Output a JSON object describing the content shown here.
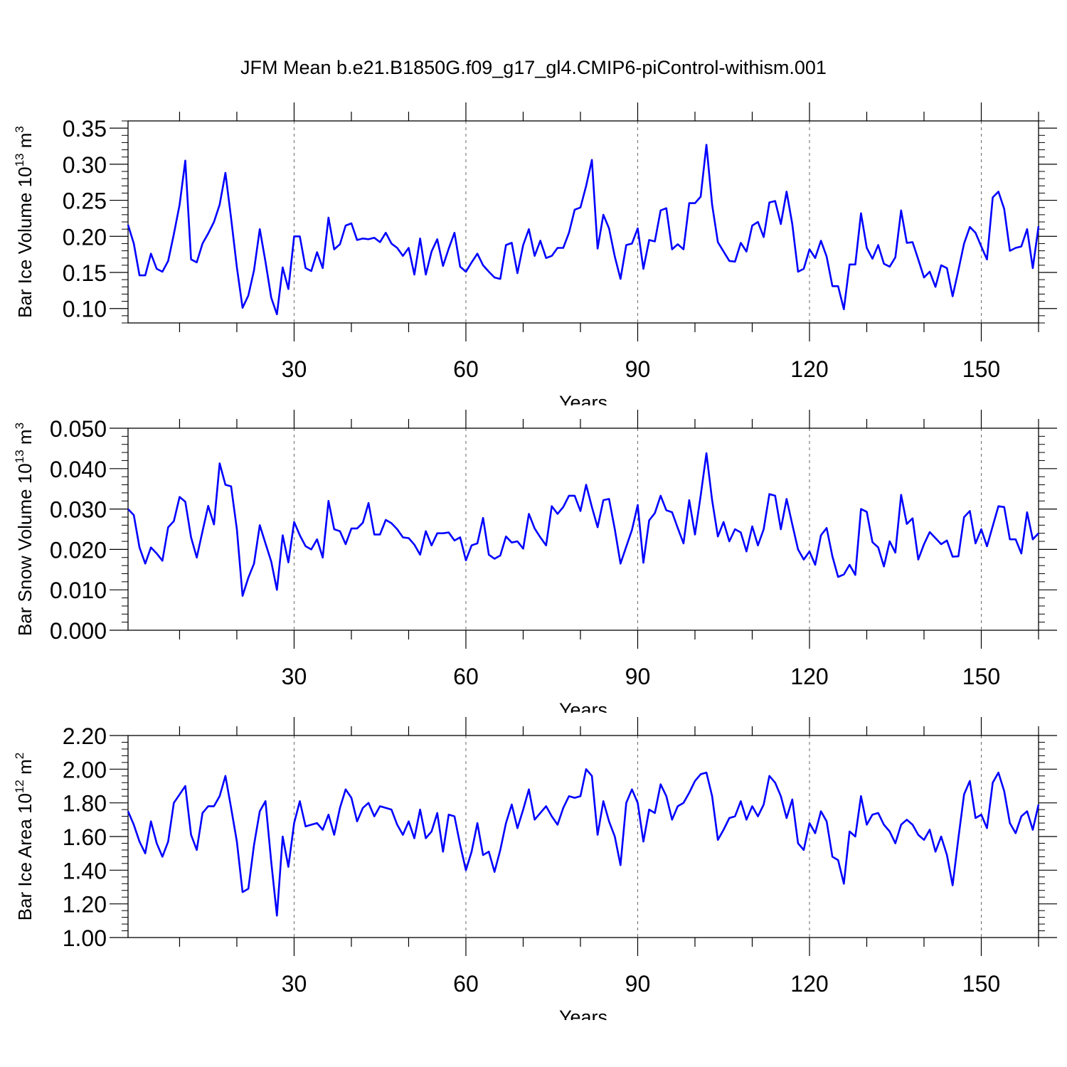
{
  "title": "JFM Mean b.e21.B1850G.f09_g17_gl4.CMIP6-piControl-withism.001",
  "colors": {
    "line": "#0000ff",
    "axis": "#000000",
    "grid": "#666666"
  },
  "chart_data": [
    {
      "type": "line",
      "xlabel": "Years",
      "ylabel_main": "Bar Ice Volume 10",
      "ylabel_exp": "13",
      "ylabel_unit": " m",
      "ylabel_unit_exp": "3",
      "xlim": [
        1,
        160
      ],
      "ylim": [
        0.08,
        0.36
      ],
      "yticks": [
        0.1,
        0.15,
        0.2,
        0.25,
        0.3,
        0.35
      ],
      "ytick_labels": [
        "0.10",
        "0.15",
        "0.20",
        "0.25",
        "0.30",
        "0.35"
      ],
      "xticks": [
        30,
        60,
        90,
        120,
        150
      ],
      "xtick_labels": [
        "30",
        "60",
        "90",
        "120",
        "150"
      ],
      "grid_x": [
        30,
        60,
        90,
        120,
        150
      ],
      "series": [
        {
          "name": "Bar Ice Volume",
          "values": [
            0.216,
            0.19,
            0.146,
            0.146,
            0.176,
            0.155,
            0.151,
            0.166,
            0.203,
            0.244,
            0.305,
            0.168,
            0.164,
            0.19,
            0.204,
            0.22,
            0.244,
            0.288,
            0.225,
            0.157,
            0.101,
            0.118,
            0.153,
            0.21,
            0.165,
            0.115,
            0.092,
            0.157,
            0.127,
            0.2,
            0.2,
            0.156,
            0.152,
            0.178,
            0.156,
            0.226,
            0.182,
            0.189,
            0.215,
            0.218,
            0.195,
            0.197,
            0.196,
            0.198,
            0.192,
            0.205,
            0.19,
            0.184,
            0.173,
            0.184,
            0.147,
            0.197,
            0.147,
            0.179,
            0.196,
            0.159,
            0.183,
            0.205,
            0.158,
            0.151,
            0.164,
            0.176,
            0.16,
            0.151,
            0.143,
            0.141,
            0.188,
            0.191,
            0.149,
            0.188,
            0.21,
            0.173,
            0.194,
            0.17,
            0.173,
            0.184,
            0.184,
            0.205,
            0.237,
            0.24,
            0.27,
            0.306,
            0.183,
            0.23,
            0.211,
            0.172,
            0.141,
            0.188,
            0.19,
            0.211,
            0.155,
            0.195,
            0.193,
            0.236,
            0.239,
            0.182,
            0.189,
            0.182,
            0.246,
            0.246,
            0.255,
            0.327,
            0.244,
            0.192,
            0.179,
            0.166,
            0.165,
            0.191,
            0.179,
            0.215,
            0.22,
            0.199,
            0.247,
            0.249,
            0.217,
            0.262,
            0.217,
            0.151,
            0.155,
            0.182,
            0.17,
            0.194,
            0.172,
            0.131,
            0.131,
            0.099,
            0.161,
            0.161,
            0.232,
            0.184,
            0.169,
            0.188,
            0.162,
            0.158,
            0.171,
            0.236,
            0.191,
            0.192,
            0.168,
            0.143,
            0.151,
            0.13,
            0.16,
            0.156,
            0.117,
            0.153,
            0.19,
            0.213,
            0.205,
            0.186,
            0.168,
            0.254,
            0.262,
            0.238,
            0.18,
            0.184,
            0.186,
            0.21,
            0.156,
            0.214
          ]
        }
      ]
    },
    {
      "type": "line",
      "xlabel": "Years",
      "ylabel_main": "Bar Snow Volume 10",
      "ylabel_exp": "13",
      "ylabel_unit": " m",
      "ylabel_unit_exp": "3",
      "xlim": [
        1,
        160
      ],
      "ylim": [
        0.0,
        0.05
      ],
      "yticks": [
        0.0,
        0.01,
        0.02,
        0.03,
        0.04,
        0.05
      ],
      "ytick_labels": [
        "0.000",
        "0.010",
        "0.020",
        "0.030",
        "0.040",
        "0.050"
      ],
      "xticks": [
        30,
        60,
        90,
        120,
        150
      ],
      "xtick_labels": [
        "30",
        "60",
        "90",
        "120",
        "150"
      ],
      "grid_x": [
        30,
        60,
        90,
        120,
        150
      ],
      "series": [
        {
          "name": "Bar Snow Volume",
          "values": [
            0.03,
            0.0285,
            0.0205,
            0.0165,
            0.0205,
            0.019,
            0.0172,
            0.0255,
            0.027,
            0.033,
            0.0318,
            0.023,
            0.018,
            0.0245,
            0.0308,
            0.0262,
            0.0413,
            0.036,
            0.0356,
            0.025,
            0.0085,
            0.013,
            0.0165,
            0.026,
            0.0215,
            0.017,
            0.01,
            0.0235,
            0.0168,
            0.0268,
            0.0235,
            0.0208,
            0.02,
            0.0225,
            0.018,
            0.032,
            0.025,
            0.0245,
            0.0213,
            0.0252,
            0.0252,
            0.0266,
            0.0315,
            0.0237,
            0.0237,
            0.0273,
            0.0265,
            0.025,
            0.023,
            0.0228,
            0.0212,
            0.0187,
            0.0245,
            0.021,
            0.024,
            0.024,
            0.0242,
            0.0222,
            0.023,
            0.0173,
            0.021,
            0.0215,
            0.0278,
            0.0187,
            0.0177,
            0.0185,
            0.0232,
            0.0217,
            0.022,
            0.0202,
            0.0288,
            0.0252,
            0.023,
            0.021,
            0.0307,
            0.0288,
            0.0305,
            0.0333,
            0.0333,
            0.0295,
            0.036,
            0.0305,
            0.0255,
            0.0322,
            0.0325,
            0.025,
            0.0165,
            0.0207,
            0.0248,
            0.031,
            0.0167,
            0.0272,
            0.029,
            0.0333,
            0.0297,
            0.0292,
            0.0253,
            0.0215,
            0.0322,
            0.0237,
            0.0333,
            0.0438,
            0.0322,
            0.0232,
            0.0268,
            0.022,
            0.025,
            0.0242,
            0.0195,
            0.0257,
            0.021,
            0.025,
            0.0337,
            0.0333,
            0.025,
            0.0325,
            0.0262,
            0.02,
            0.0175,
            0.0195,
            0.0162,
            0.0235,
            0.0253,
            0.0183,
            0.0132,
            0.0138,
            0.0162,
            0.0137,
            0.03,
            0.0293,
            0.0218,
            0.0205,
            0.0158,
            0.022,
            0.0192,
            0.0335,
            0.0263,
            0.0277,
            0.0175,
            0.0213,
            0.0243,
            0.0228,
            0.0213,
            0.0222,
            0.0182,
            0.0183,
            0.028,
            0.0295,
            0.0215,
            0.025,
            0.0208,
            0.0258,
            0.0307,
            0.0305,
            0.0225,
            0.0225,
            0.019,
            0.0292,
            0.0225,
            0.024
          ]
        }
      ]
    },
    {
      "type": "line",
      "xlabel": "Years",
      "ylabel_main": "Bar Ice Area 10",
      "ylabel_exp": "12",
      "ylabel_unit": " m",
      "ylabel_unit_exp": "2",
      "xlim": [
        1,
        160
      ],
      "ylim": [
        1.0,
        2.2
      ],
      "yticks": [
        1.0,
        1.2,
        1.4,
        1.6,
        1.8,
        2.0,
        2.2
      ],
      "ytick_labels": [
        "1.00",
        "1.20",
        "1.40",
        "1.60",
        "1.80",
        "2.00",
        "2.20"
      ],
      "xticks": [
        30,
        60,
        90,
        120,
        150
      ],
      "xtick_labels": [
        "30",
        "60",
        "90",
        "120",
        "150"
      ],
      "grid_x": [
        30,
        60,
        90,
        120,
        150
      ],
      "series": [
        {
          "name": "Bar Ice Area",
          "values": [
            1.75,
            1.67,
            1.57,
            1.5,
            1.69,
            1.56,
            1.48,
            1.57,
            1.8,
            1.85,
            1.9,
            1.61,
            1.52,
            1.74,
            1.78,
            1.78,
            1.84,
            1.96,
            1.77,
            1.57,
            1.27,
            1.29,
            1.55,
            1.75,
            1.81,
            1.45,
            1.13,
            1.6,
            1.42,
            1.68,
            1.81,
            1.66,
            1.67,
            1.68,
            1.64,
            1.73,
            1.61,
            1.77,
            1.88,
            1.83,
            1.69,
            1.77,
            1.8,
            1.72,
            1.78,
            1.77,
            1.76,
            1.67,
            1.61,
            1.69,
            1.59,
            1.76,
            1.59,
            1.63,
            1.74,
            1.51,
            1.73,
            1.72,
            1.55,
            1.4,
            1.51,
            1.68,
            1.49,
            1.51,
            1.39,
            1.52,
            1.68,
            1.79,
            1.65,
            1.76,
            1.88,
            1.7,
            1.74,
            1.78,
            1.72,
            1.67,
            1.77,
            1.84,
            1.83,
            1.84,
            2.0,
            1.96,
            1.61,
            1.81,
            1.69,
            1.6,
            1.43,
            1.8,
            1.88,
            1.8,
            1.57,
            1.76,
            1.74,
            1.91,
            1.84,
            1.7,
            1.78,
            1.8,
            1.86,
            1.93,
            1.97,
            1.98,
            1.84,
            1.58,
            1.64,
            1.71,
            1.72,
            1.81,
            1.7,
            1.78,
            1.72,
            1.79,
            1.96,
            1.92,
            1.84,
            1.71,
            1.82,
            1.56,
            1.52,
            1.68,
            1.62,
            1.75,
            1.69,
            1.48,
            1.46,
            1.32,
            1.63,
            1.6,
            1.84,
            1.67,
            1.73,
            1.74,
            1.67,
            1.63,
            1.56,
            1.67,
            1.7,
            1.67,
            1.61,
            1.58,
            1.64,
            1.51,
            1.6,
            1.49,
            1.31,
            1.59,
            1.85,
            1.93,
            1.71,
            1.73,
            1.65,
            1.92,
            1.98,
            1.87,
            1.68,
            1.62,
            1.72,
            1.75,
            1.64,
            1.79
          ]
        }
      ]
    }
  ]
}
